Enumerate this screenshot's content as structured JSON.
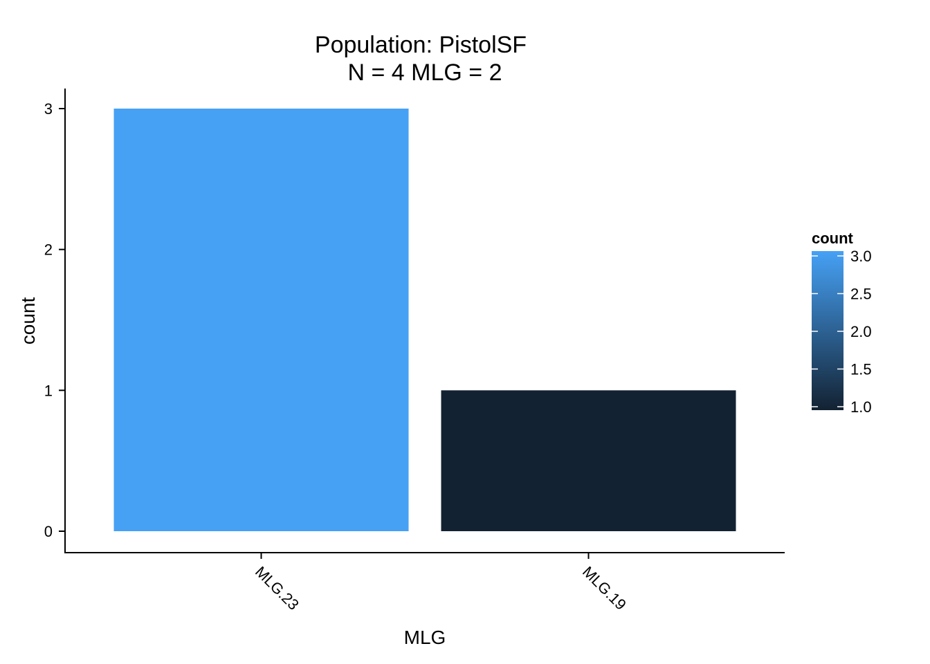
{
  "chart_data": {
    "type": "bar",
    "title_line1": "Population: PistolSF",
    "title_line2": "N = 4 MLG = 2",
    "xlabel": "MLG",
    "ylabel": "count",
    "categories": [
      "MLG.23",
      "MLG.19"
    ],
    "values": [
      3,
      1
    ],
    "ylim": [
      0,
      3
    ],
    "y_ticks": [
      "0",
      "1",
      "2",
      "3"
    ],
    "grid": false,
    "bar_colors": [
      "#46A1F5",
      "#132232"
    ],
    "legend": {
      "title": "count",
      "position": "right",
      "gradient_low": "#132232",
      "gradient_high": "#46A1F5",
      "range": [
        1,
        3
      ],
      "ticks": [
        "3.0",
        "2.5",
        "2.0",
        "1.5",
        "1.0"
      ]
    }
  }
}
